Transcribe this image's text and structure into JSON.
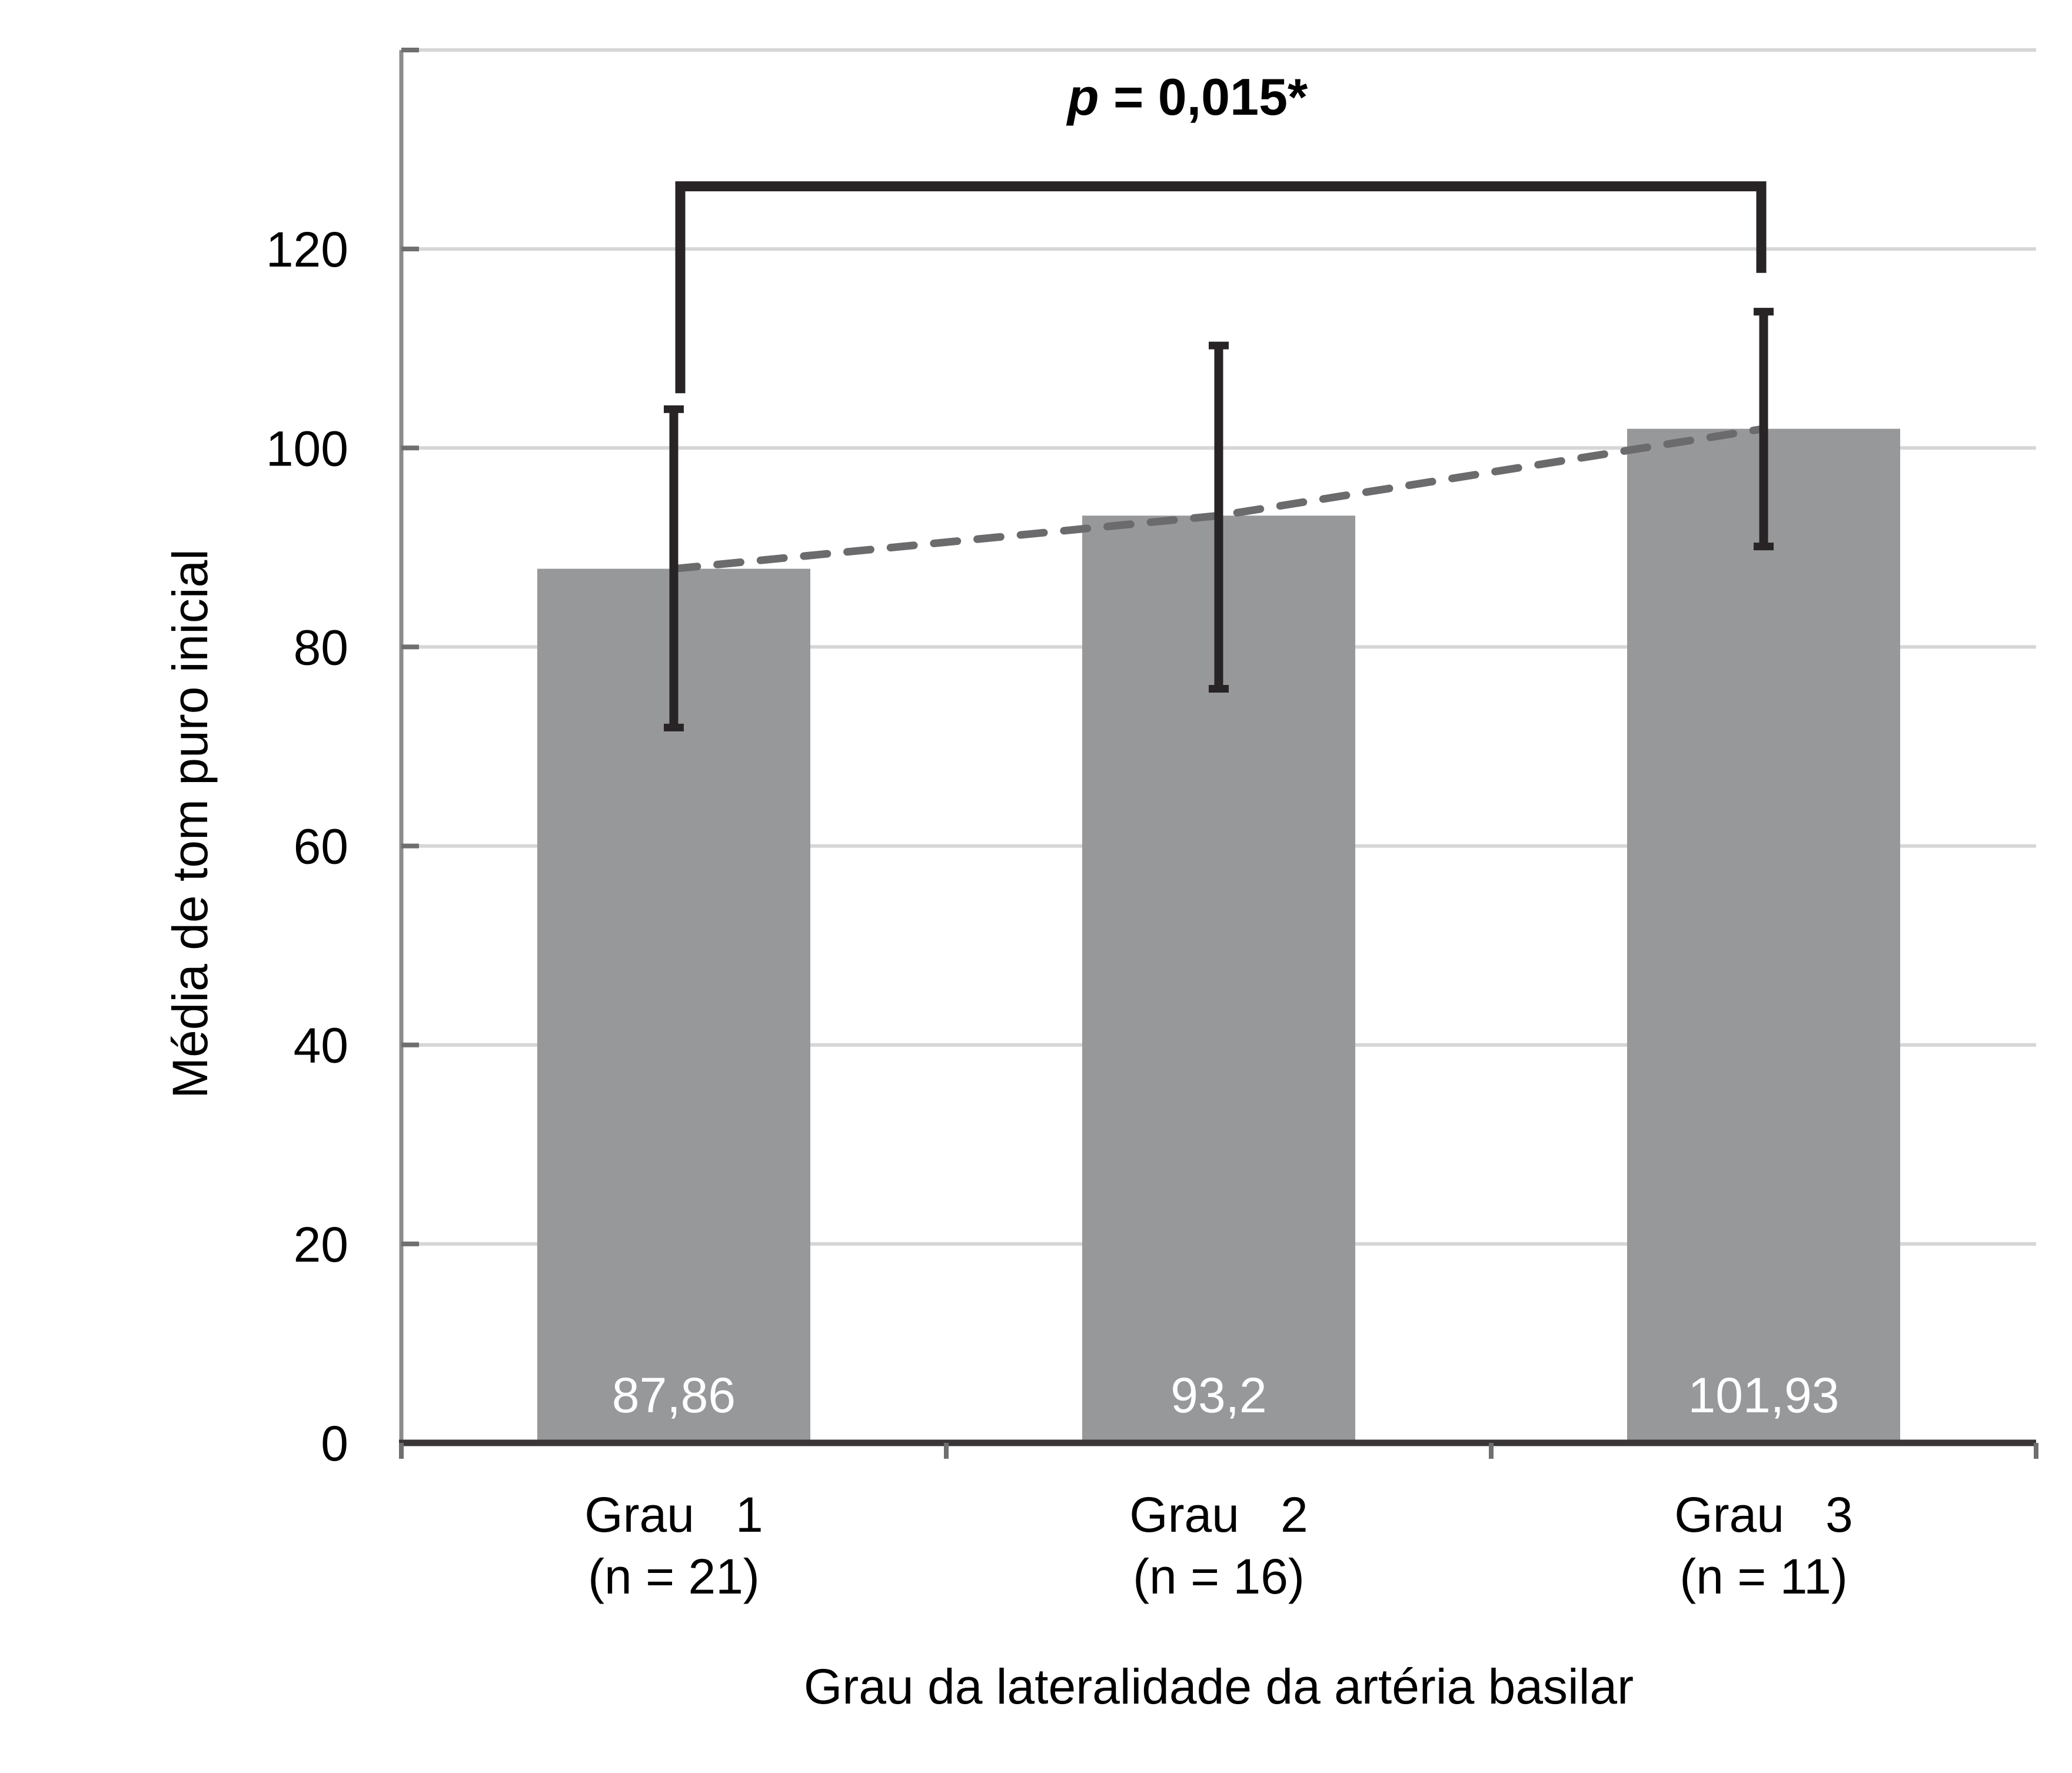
{
  "chart_data": {
    "type": "bar",
    "title": "",
    "categories": [
      "Grau   1",
      "Grau   2",
      "Grau   3"
    ],
    "category_sublabels": [
      "(n = 21)",
      "(n = 16)",
      "(n = 11)"
    ],
    "values": [
      87.86,
      93.2,
      101.93
    ],
    "value_labels": [
      "87,86",
      "93,2",
      "101,93"
    ],
    "error_low": [
      71.9,
      75.8,
      90.1
    ],
    "error_high": [
      103.9,
      110.3,
      113.7
    ],
    "xlabel": "Grau da lateralidade da artéria basilar",
    "ylabel": "Média de tom puro inicial",
    "ylim": [
      0,
      140
    ],
    "ytick_step": 20,
    "ytick_labels": [
      "0",
      "20",
      "40",
      "60",
      "80",
      "100",
      "120"
    ],
    "grid": true,
    "legend": "none",
    "trendline_through_bar_tops": true,
    "significance": {
      "p_label_italic": "p",
      "p_label_rest": " = 0,015*",
      "from_category": 0,
      "to_category": 2,
      "bar_value": 126.3,
      "left_end_value": 105.5,
      "right_end_value": 117.6
    }
  },
  "colors": {
    "bar_fill": "#97989A",
    "bar_value_text": "#FFFFFF",
    "error_bar": "#282425",
    "bracket": "#282425",
    "trend_dash": "#6B6B6D",
    "gridline": "#D6D6D6",
    "axis_line": "#8C8C8C",
    "tick_mark": "#6F6F6F",
    "baseline": "#3A3637",
    "label_text": "#000000"
  }
}
